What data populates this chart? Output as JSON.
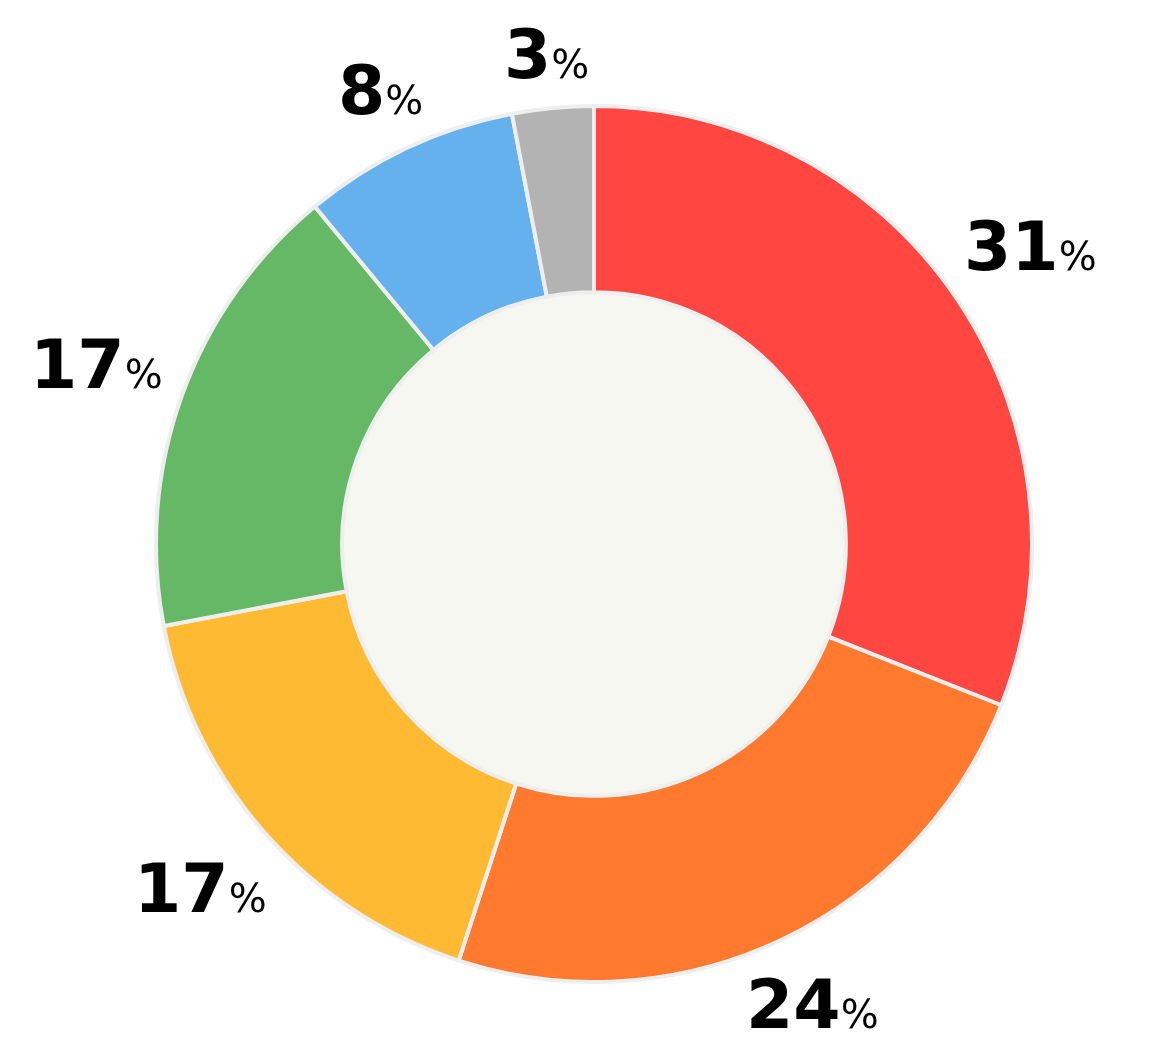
{
  "chart_data": {
    "type": "donut",
    "categories": [
      null,
      null,
      null,
      null,
      null,
      null
    ],
    "values": [
      31,
      24,
      17,
      17,
      8,
      3
    ],
    "colors": [
      "#ff4640",
      "#ff792f",
      "#ffba33",
      "#65b866",
      "#64b1ee",
      "#b3b3b3"
    ],
    "value_labels": [
      "31%",
      "24%",
      "17%",
      "17%",
      "8%",
      "3%"
    ],
    "legend": false
  }
}
